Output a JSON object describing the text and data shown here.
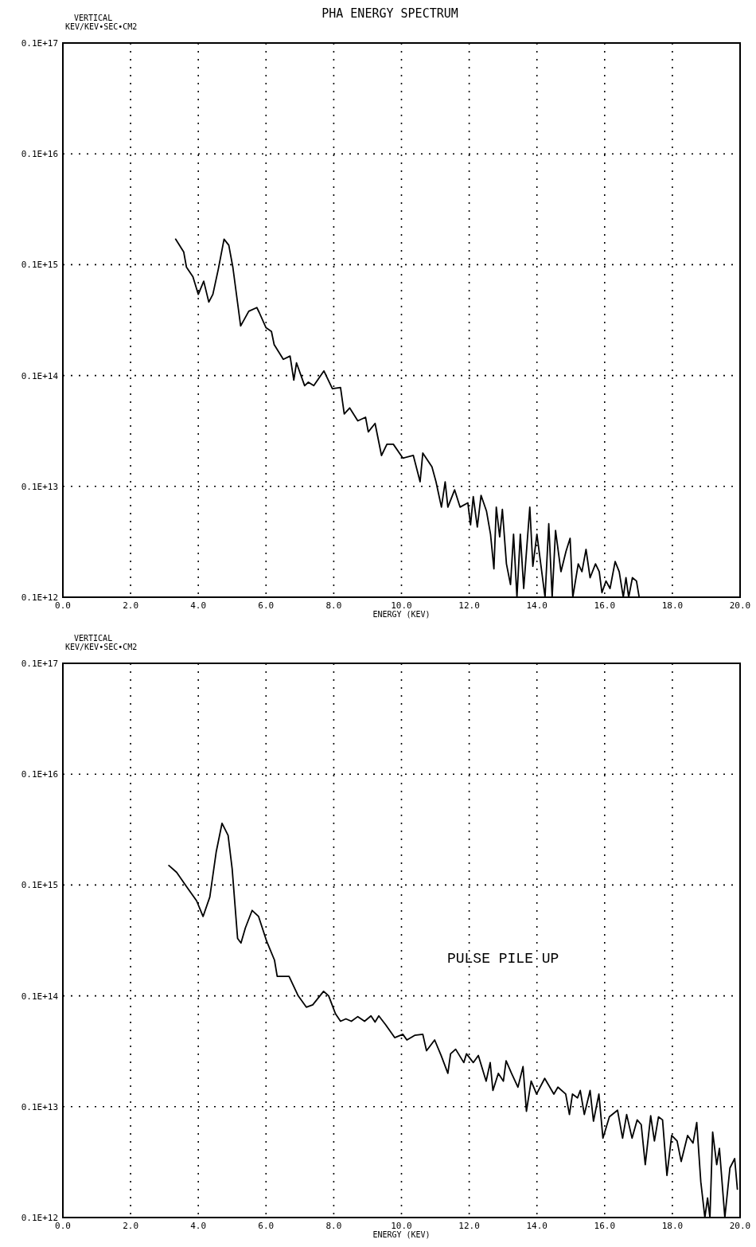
{
  "chart_data": [
    {
      "type": "line",
      "title": "PHA ENERGY SPECTRUM",
      "xlabel": "ENERGY (KEV)",
      "ylabel": "VERTICAL\nKEV/KEV•SEC•CM2",
      "log": "y",
      "grid": true,
      "marker": "none",
      "line_style": "solid",
      "xlim": [
        0,
        20
      ],
      "ylim": [
        100000000000.0,
        1e+16
      ],
      "xticks": [
        {
          "value": 0,
          "label": "0.0"
        },
        {
          "value": 2,
          "label": "2.0"
        },
        {
          "value": 4,
          "label": "4.0"
        },
        {
          "value": 6,
          "label": "6.0"
        },
        {
          "value": 8,
          "label": "8.0"
        },
        {
          "value": 10,
          "label": "10.0"
        },
        {
          "value": 12,
          "label": "12.0"
        },
        {
          "value": 14,
          "label": "14.0"
        },
        {
          "value": 16,
          "label": "16.0"
        },
        {
          "value": 18,
          "label": "18.0"
        },
        {
          "value": 20,
          "label": "20.0"
        }
      ],
      "yticks": [
        {
          "value": 100000000000.0,
          "label": "0.1E+12"
        },
        {
          "value": 1000000000000.0,
          "label": "0.1E+13"
        },
        {
          "value": 10000000000000.0,
          "label": "0.1E+14"
        },
        {
          "value": 100000000000000.0,
          "label": "0.1E+15"
        },
        {
          "value": 1000000000000000.0,
          "label": "0.1E+16"
        },
        {
          "value": 1e+16,
          "label": "0.1E+17"
        }
      ],
      "series": [
        {
          "color": "#000000",
          "x": [
            3.33,
            3.57,
            3.65,
            3.84,
            4.0,
            4.16,
            4.31,
            4.43,
            4.59,
            4.76,
            4.9,
            5.02,
            5.25,
            5.49,
            5.73,
            5.8,
            6.0,
            6.16,
            6.24,
            6.51,
            6.71,
            6.82,
            6.9,
            7.14,
            7.25,
            7.41,
            7.71,
            7.96,
            8.2,
            8.31,
            8.47,
            8.71,
            8.94,
            9.02,
            9.22,
            9.41,
            9.57,
            9.76,
            10.04,
            10.35,
            10.55,
            10.63,
            10.9,
            11.02,
            11.18,
            11.29,
            11.37,
            11.57,
            11.73,
            11.96,
            12.04,
            12.12,
            12.24,
            12.35,
            12.51,
            12.63,
            12.73,
            12.8,
            12.9,
            12.98,
            13.1,
            13.22,
            13.31,
            13.41,
            13.51,
            13.61,
            13.79,
            13.88,
            14.0,
            14.24,
            14.35,
            14.45,
            14.55,
            14.71,
            14.86,
            14.98,
            15.06,
            15.22,
            15.33,
            15.45,
            15.57,
            15.73,
            15.84,
            15.92,
            16.04,
            16.16,
            16.31,
            16.43,
            16.55,
            16.63,
            16.71,
            16.82,
            16.94,
            17.02
          ],
          "values": [
            170000000000000.0,
            130000000000000.0,
            95000000000000.0,
            78000000000000.0,
            54000000000000.0,
            71000000000000.0,
            46000000000000.0,
            54000000000000.0,
            91000000000000.0,
            170000000000000.0,
            150000000000000.0,
            95000000000000.0,
            28000000000000.0,
            38000000000000.0,
            41000000000000.0,
            37000000000000.0,
            27000000000000.0,
            25000000000000.0,
            19000000000000.0,
            14000000000000.0,
            15000000000000.0,
            9100000000000.0,
            13000000000000.0,
            8100000000000.0,
            8700000000000.0,
            8100000000000.0,
            11000000000000.0,
            7600000000000.0,
            7800000000000.0,
            4500000000000.0,
            5100000000000.0,
            3900000000000.0,
            4200000000000.0,
            3100000000000.0,
            3700000000000.0,
            1900000000000.0,
            2400000000000.0,
            2400000000000.0,
            1800000000000.0,
            1900000000000.0,
            1100000000000.0,
            2000000000000.0,
            1500000000000.0,
            1100000000000.0,
            650000000000.0,
            1100000000000.0,
            650000000000.0,
            930000000000.0,
            650000000000.0,
            710000000000.0,
            450000000000.0,
            810000000000.0,
            430000000000.0,
            830000000000.0,
            600000000000.0,
            370000000000.0,
            180000000000.0,
            650000000000.0,
            350000000000.0,
            620000000000.0,
            200000000000.0,
            130000000000.0,
            370000000000.0,
            100000000000.0,
            370000000000.0,
            120000000000.0,
            650000000000.0,
            190000000000.0,
            370000000000.0,
            100000000000.0,
            460000000000.0,
            100000000000.0,
            400000000000.0,
            170000000000.0,
            260000000000.0,
            340000000000.0,
            100000000000.0,
            200000000000.0,
            170000000000.0,
            270000000000.0,
            150000000000.0,
            200000000000.0,
            170000000000.0,
            110000000000.0,
            140000000000.0,
            120000000000.0,
            210000000000.0,
            170000000000.0,
            100000000000.0,
            150000000000.0,
            100000000000.0,
            150000000000.0,
            140000000000.0,
            100000000000.0
          ]
        }
      ]
    },
    {
      "type": "line",
      "xlabel": "ENERGY (KEV)",
      "ylabel": "VERTICAL\nKEV/KEV•SEC•CM2",
      "annotations": [
        "PULSE PILE UP"
      ],
      "log": "y",
      "grid": true,
      "marker": "none",
      "line_style": "solid",
      "xlim": [
        0,
        20
      ],
      "ylim": [
        100000000000.0,
        1e+16
      ],
      "xticks": [
        {
          "value": 0,
          "label": "0.0"
        },
        {
          "value": 2,
          "label": "2.0"
        },
        {
          "value": 4,
          "label": "4.0"
        },
        {
          "value": 6,
          "label": "6.0"
        },
        {
          "value": 8,
          "label": "8.0"
        },
        {
          "value": 10,
          "label": "10.0"
        },
        {
          "value": 12,
          "label": "12.0"
        },
        {
          "value": 14,
          "label": "14.0"
        },
        {
          "value": 16,
          "label": "16.0"
        },
        {
          "value": 18,
          "label": "18.0"
        },
        {
          "value": 20,
          "label": "20.0"
        }
      ],
      "yticks": [
        {
          "value": 100000000000.0,
          "label": "0.1E+12"
        },
        {
          "value": 1000000000000.0,
          "label": "0.1E+13"
        },
        {
          "value": 10000000000000.0,
          "label": "0.1E+14"
        },
        {
          "value": 100000000000000.0,
          "label": "0.1E+15"
        },
        {
          "value": 1000000000000000.0,
          "label": "0.1E+16"
        },
        {
          "value": 1e+16,
          "label": "0.1E+17"
        }
      ],
      "series": [
        {
          "color": "#000000",
          "x": [
            3.13,
            3.36,
            3.67,
            3.95,
            4.14,
            4.34,
            4.53,
            4.7,
            4.88,
            5.0,
            5.16,
            5.26,
            5.39,
            5.59,
            5.78,
            6.02,
            6.25,
            6.33,
            6.56,
            6.68,
            6.95,
            7.19,
            7.38,
            7.7,
            7.85,
            8.05,
            8.2,
            8.36,
            8.52,
            8.71,
            8.91,
            9.1,
            9.22,
            9.33,
            9.53,
            9.8,
            10.04,
            10.16,
            10.39,
            10.63,
            10.74,
            10.98,
            11.17,
            11.37,
            11.45,
            11.6,
            11.84,
            11.92,
            12.12,
            12.27,
            12.5,
            12.62,
            12.7,
            12.86,
            13.01,
            13.09,
            13.25,
            13.44,
            13.59,
            13.69,
            13.83,
            13.99,
            14.23,
            14.5,
            14.62,
            14.85,
            14.96,
            15.05,
            15.2,
            15.28,
            15.4,
            15.57,
            15.67,
            15.83,
            15.95,
            16.14,
            16.38,
            16.53,
            16.65,
            16.81,
            16.96,
            17.08,
            17.2,
            17.36,
            17.47,
            17.59,
            17.71,
            17.84,
            17.98,
            18.14,
            18.26,
            18.45,
            18.61,
            18.72,
            18.84,
            18.96,
            19.04,
            19.11,
            19.19,
            19.31,
            19.39,
            19.55,
            19.7,
            19.84,
            19.92
          ],
          "values": [
            150000000000000.0,
            130000000000000.0,
            95000000000000.0,
            72000000000000.0,
            52000000000000.0,
            78000000000000.0,
            200000000000000.0,
            360000000000000.0,
            280000000000000.0,
            140000000000000.0,
            33000000000000.0,
            30000000000000.0,
            41000000000000.0,
            59000000000000.0,
            52000000000000.0,
            31000000000000.0,
            21000000000000.0,
            15000000000000.0,
            15000000000000.0,
            15000000000000.0,
            10000000000000.0,
            7900000000000.0,
            8300000000000.0,
            11000000000000.0,
            10000000000000.0,
            6900000000000.0,
            5900000000000.0,
            6200000000000.0,
            5900000000000.0,
            6500000000000.0,
            5900000000000.0,
            6600000000000.0,
            5800000000000.0,
            6600000000000.0,
            5500000000000.0,
            4200000000000.0,
            4500000000000.0,
            4000000000000.0,
            4400000000000.0,
            4500000000000.0,
            3200000000000.0,
            4000000000000.0,
            2900000000000.0,
            2000000000000.0,
            3000000000000.0,
            3300000000000.0,
            2500000000000.0,
            3000000000000.0,
            2500000000000.0,
            2900000000000.0,
            1700000000000.0,
            2500000000000.0,
            1400000000000.0,
            2000000000000.0,
            1700000000000.0,
            2600000000000.0,
            2000000000000.0,
            1500000000000.0,
            2300000000000.0,
            910000000000.0,
            1700000000000.0,
            1300000000000.0,
            1800000000000.0,
            1300000000000.0,
            1500000000000.0,
            1300000000000.0,
            850000000000.0,
            1300000000000.0,
            1200000000000.0,
            1400000000000.0,
            850000000000.0,
            1400000000000.0,
            740000000000.0,
            1300000000000.0,
            520000000000.0,
            810000000000.0,
            930000000000.0,
            520000000000.0,
            850000000000.0,
            520000000000.0,
            760000000000.0,
            690000000000.0,
            300000000000.0,
            830000000000.0,
            490000000000.0,
            810000000000.0,
            760000000000.0,
            240000000000.0,
            550000000000.0,
            490000000000.0,
            320000000000.0,
            550000000000.0,
            470000000000.0,
            720000000000.0,
            210000000000.0,
            100000000000.0,
            150000000000.0,
            100000000000.0,
            590000000000.0,
            300000000000.0,
            420000000000.0,
            100000000000.0,
            280000000000.0,
            340000000000.0,
            180000000000.0
          ]
        }
      ]
    }
  ]
}
